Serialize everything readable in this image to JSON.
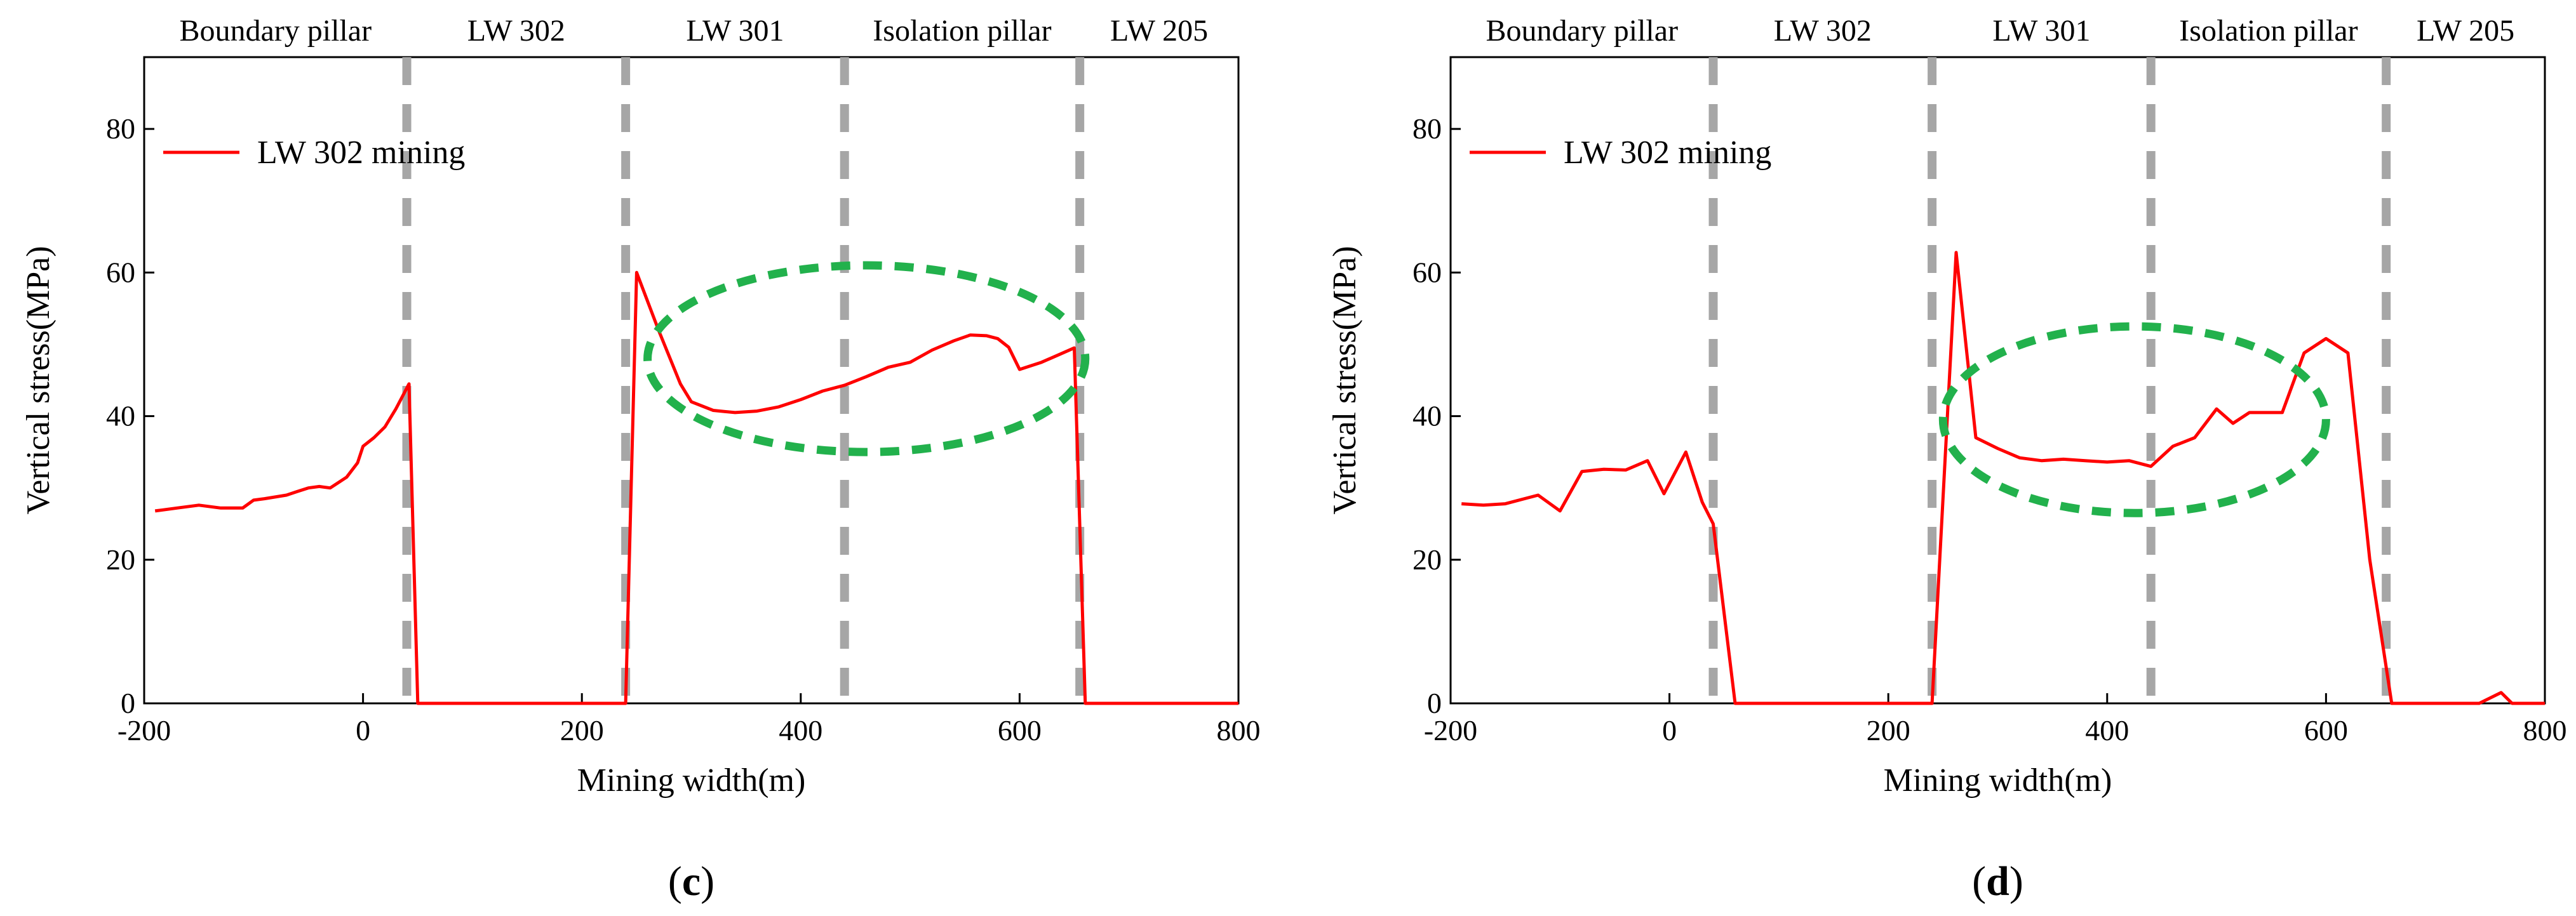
{
  "chart_data": [
    {
      "type": "line",
      "panel_label": "c",
      "title": "",
      "xlabel": "Mining width(m)",
      "ylabel": "Vertical stress(MPa)",
      "xlim": [
        -200,
        800
      ],
      "ylim": [
        0,
        90
      ],
      "xticks": [
        "-200",
        "0",
        "200",
        "400",
        "600",
        "800"
      ],
      "yticks": [
        "0",
        "20",
        "40",
        "60",
        "80"
      ],
      "legend": {
        "position": "top-left"
      },
      "zones": [
        "Boundary pillar",
        "LW 302",
        "LW 301",
        "Isolation pillar",
        "LW 205"
      ],
      "boundaries": [
        40,
        240,
        440,
        655
      ],
      "ellipse": {
        "cx": 460,
        "cy": 48,
        "rx": 200,
        "ry": 13
      },
      "series": [
        {
          "name": "LW 302 mining",
          "color": "#ff0000",
          "x": [
            -190,
            -170,
            -150,
            -130,
            -110,
            -100,
            -90,
            -70,
            -60,
            -50,
            -40,
            -30,
            -15,
            -5,
            0,
            10,
            20,
            30,
            42,
            50,
            100,
            150,
            200,
            240,
            250,
            270,
            290,
            300,
            320,
            340,
            360,
            380,
            400,
            420,
            440,
            460,
            480,
            500,
            520,
            540,
            555,
            570,
            580,
            590,
            600,
            610,
            620,
            635,
            650,
            660,
            670,
            700,
            750,
            800
          ],
          "values": [
            26.8,
            27.2,
            27.6,
            27.2,
            27.2,
            28.3,
            28.5,
            29.0,
            29.5,
            30.0,
            30.2,
            30.0,
            31.5,
            33.5,
            35.8,
            37.0,
            38.5,
            41.0,
            44.5,
            0,
            0,
            0,
            0,
            0,
            60.0,
            52.0,
            44.5,
            42.0,
            40.8,
            40.5,
            40.7,
            41.3,
            42.3,
            43.5,
            44.3,
            45.5,
            46.8,
            47.5,
            49.2,
            50.5,
            51.3,
            51.2,
            50.8,
            49.6,
            46.5,
            47.0,
            47.5,
            48.5,
            49.5,
            0,
            0,
            0,
            0,
            0
          ]
        }
      ]
    },
    {
      "type": "line",
      "panel_label": "d",
      "title": "",
      "xlabel": "Mining width(m)",
      "ylabel": "Vertical stress(MPa)",
      "xlim": [
        -200,
        800
      ],
      "ylim": [
        0,
        90
      ],
      "xticks": [
        "-200",
        "0",
        "200",
        "400",
        "600",
        "800"
      ],
      "yticks": [
        "0",
        "20",
        "40",
        "60",
        "80"
      ],
      "legend": {
        "position": "top-left"
      },
      "zones": [
        "Boundary pillar",
        "LW 302",
        "LW 301",
        "Isolation pillar",
        "LW 205"
      ],
      "boundaries": [
        40,
        240,
        440,
        655
      ],
      "ellipse": {
        "cx": 425,
        "cy": 39.5,
        "rx": 175,
        "ry": 13
      },
      "series": [
        {
          "name": "LW 302 mining",
          "color": "#ff0000",
          "x": [
            -190,
            -170,
            -150,
            -130,
            -120,
            -100,
            -80,
            -60,
            -40,
            -20,
            -5,
            15,
            30,
            40,
            60,
            100,
            150,
            200,
            240,
            262,
            280,
            300,
            320,
            340,
            360,
            380,
            400,
            420,
            440,
            460,
            480,
            500,
            515,
            530,
            545,
            560,
            580,
            600,
            620,
            640,
            660,
            680,
            700,
            740,
            760,
            770,
            800
          ],
          "values": [
            27.8,
            27.6,
            27.8,
            28.6,
            29.0,
            26.8,
            32.3,
            32.6,
            32.5,
            33.8,
            29.2,
            35.0,
            28.0,
            25.0,
            0,
            0,
            0,
            0,
            0,
            62.8,
            37.0,
            35.5,
            34.2,
            33.8,
            34.0,
            33.8,
            33.6,
            33.8,
            33.0,
            35.8,
            37.0,
            41.0,
            39.0,
            40.5,
            40.5,
            40.5,
            48.8,
            50.8,
            48.8,
            20.0,
            0,
            0,
            0,
            0,
            1.5,
            0,
            0
          ]
        }
      ]
    }
  ]
}
